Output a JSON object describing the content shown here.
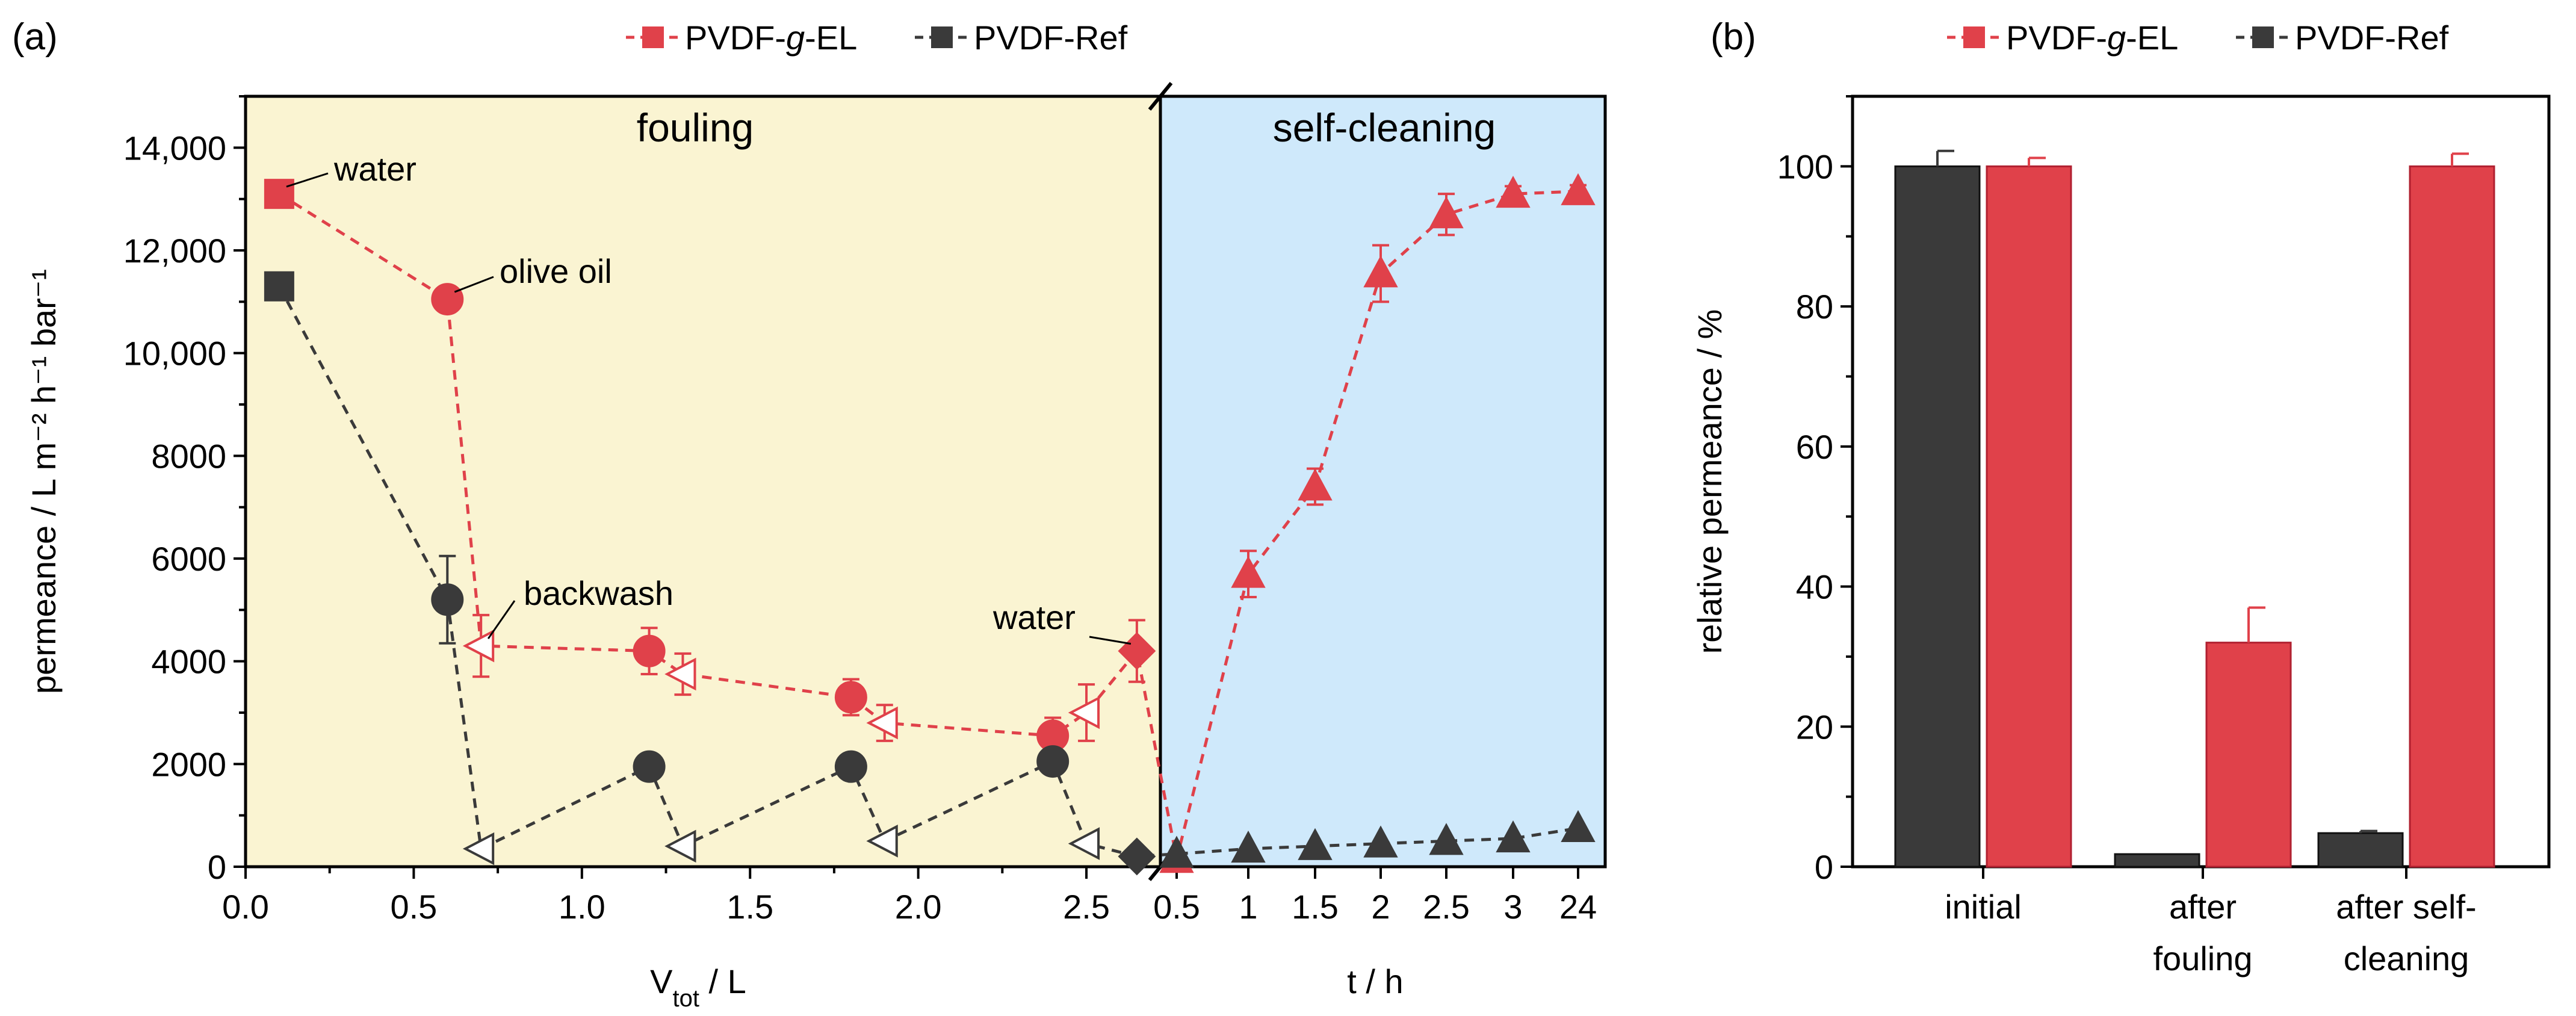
{
  "colors": {
    "red": "#e0414a",
    "dark": "#3a3a3a",
    "fouling_bg": "#faf4d2",
    "cleaning_bg": "#cfe9fb",
    "fouling_text": "#e07a10",
    "cleaning_text": "#1a237e"
  },
  "icons": {
    "break_mark": "axis-break-icon"
  },
  "chart_data": [
    {
      "panel": "(a)",
      "type": "line",
      "legend": {
        "placement": "top-center",
        "entries": [
          {
            "pre": "PVDF-",
            "ital": "g",
            "post": "-EL",
            "series": "PVDF-g-EL"
          },
          {
            "pre": "PVDF-Ref",
            "ital": "",
            "post": "",
            "series": "PVDF-Ref"
          }
        ]
      },
      "ylabel": "permeance / L m⁻² h⁻¹ bar⁻¹",
      "ylim": [
        0,
        15000
      ],
      "yticks": [
        0,
        2000,
        4000,
        6000,
        8000,
        10000,
        12000,
        14000
      ],
      "ytick_labels": [
        "0",
        "2000",
        "4000",
        "6000",
        "8000",
        "10,000",
        "12,000",
        "14,000"
      ],
      "region_labels": {
        "fouling": "fouling",
        "cleaning": "self-cleaning"
      },
      "fouling_axis": {
        "xlabel_main": "V",
        "xlabel_sub": "tot",
        "xlabel_rest": " / L",
        "xlim": [
          0,
          2.72
        ],
        "xticks": [
          0.0,
          0.5,
          1.0,
          1.5,
          2.0,
          2.5
        ],
        "xtick_labels": [
          "0.0",
          "0.5",
          "1.0",
          "1.5",
          "2.0",
          "2.5"
        ]
      },
      "cleaning_axis": {
        "xlabel": "t / h",
        "xtick_labels": [
          "0.5",
          "1",
          "1.5",
          "2",
          "2.5",
          "3",
          "24"
        ]
      },
      "series": [
        {
          "name": "PVDF-g-EL",
          "fouling": [
            {
              "x": 0.1,
              "y": 13100,
              "err": 0,
              "marker": "square"
            },
            {
              "x": 0.6,
              "y": 11050,
              "err": 250,
              "marker": "circle"
            },
            {
              "x": 0.7,
              "y": 4300,
              "err": 600,
              "marker": "tri-left"
            },
            {
              "x": 1.2,
              "y": 4200,
              "err": 450,
              "marker": "circle"
            },
            {
              "x": 1.3,
              "y": 3750,
              "err": 400,
              "marker": "tri-left"
            },
            {
              "x": 1.8,
              "y": 3300,
              "err": 350,
              "marker": "circle"
            },
            {
              "x": 1.9,
              "y": 2800,
              "err": 350,
              "marker": "tri-left"
            },
            {
              "x": 2.4,
              "y": 2550,
              "err": 350,
              "marker": "circle"
            },
            {
              "x": 2.5,
              "y": 3000,
              "err": 550,
              "marker": "tri-left"
            },
            {
              "x": 2.65,
              "y": 4200,
              "err": 600,
              "marker": "diamond"
            }
          ],
          "cleaning": [
            {
              "t": "0.5",
              "y": 150,
              "err": 0
            },
            {
              "t": "1",
              "y": 5700,
              "err": 450
            },
            {
              "t": "1.5",
              "y": 7400,
              "err": 350
            },
            {
              "t": "2",
              "y": 11550,
              "err": 550
            },
            {
              "t": "2.5",
              "y": 12700,
              "err": 400
            },
            {
              "t": "3",
              "y": 13100,
              "err": 150
            },
            {
              "t": "24",
              "y": 13150,
              "err": 120
            }
          ]
        },
        {
          "name": "PVDF-Ref",
          "fouling": [
            {
              "x": 0.1,
              "y": 11300,
              "err": 250,
              "marker": "square"
            },
            {
              "x": 0.6,
              "y": 5200,
              "err": 850,
              "marker": "circle"
            },
            {
              "x": 0.7,
              "y": 350,
              "err": 0,
              "marker": "tri-left"
            },
            {
              "x": 1.2,
              "y": 1950,
              "err": 200,
              "marker": "circle"
            },
            {
              "x": 1.3,
              "y": 400,
              "err": 0,
              "marker": "tri-left"
            },
            {
              "x": 1.8,
              "y": 1950,
              "err": 200,
              "marker": "circle"
            },
            {
              "x": 1.9,
              "y": 500,
              "err": 0,
              "marker": "tri-left"
            },
            {
              "x": 2.4,
              "y": 2050,
              "err": 150,
              "marker": "circle"
            },
            {
              "x": 2.5,
              "y": 450,
              "err": 0,
              "marker": "tri-left"
            },
            {
              "x": 2.65,
              "y": 200,
              "err": 0,
              "marker": "diamond"
            }
          ],
          "cleaning": [
            {
              "t": "0.5",
              "y": 250,
              "err": 0
            },
            {
              "t": "1",
              "y": 350,
              "err": 0
            },
            {
              "t": "1.5",
              "y": 400,
              "err": 0
            },
            {
              "t": "2",
              "y": 450,
              "err": 0
            },
            {
              "t": "2.5",
              "y": 500,
              "err": 0
            },
            {
              "t": "3",
              "y": 550,
              "err": 0
            },
            {
              "t": "24",
              "y": 750,
              "err": 0
            }
          ]
        }
      ],
      "annotations": [
        {
          "text": "water",
          "series": "PVDF-g-EL",
          "x": 0.1
        },
        {
          "text": "olive oil",
          "series": "PVDF-g-EL",
          "x": 0.6
        },
        {
          "text": "backwash",
          "series": "PVDF-g-EL",
          "x": 0.7
        },
        {
          "text": "water",
          "series": "PVDF-g-EL",
          "x": 2.65
        }
      ]
    },
    {
      "panel": "(b)",
      "type": "bar",
      "legend": {
        "placement": "top-center",
        "entries": [
          {
            "pre": "PVDF-",
            "ital": "g",
            "post": "-EL",
            "series": "PVDF-g-EL"
          },
          {
            "pre": "PVDF-Ref",
            "ital": "",
            "post": "",
            "series": "PVDF-Ref"
          }
        ]
      },
      "ylabel": "relative permeance / %",
      "ylim": [
        0,
        110
      ],
      "yticks": [
        0,
        20,
        40,
        60,
        80,
        100
      ],
      "categories": [
        [
          "initial"
        ],
        [
          "after",
          "fouling"
        ],
        [
          "after self-",
          "cleaning"
        ]
      ],
      "series": [
        {
          "name": "PVDF-Ref",
          "values": [
            100,
            1.8,
            4.8
          ],
          "errors": [
            2.2,
            0,
            0.3
          ]
        },
        {
          "name": "PVDF-g-EL",
          "values": [
            100,
            32,
            100
          ],
          "errors": [
            1.2,
            5,
            1.8
          ]
        }
      ]
    }
  ]
}
